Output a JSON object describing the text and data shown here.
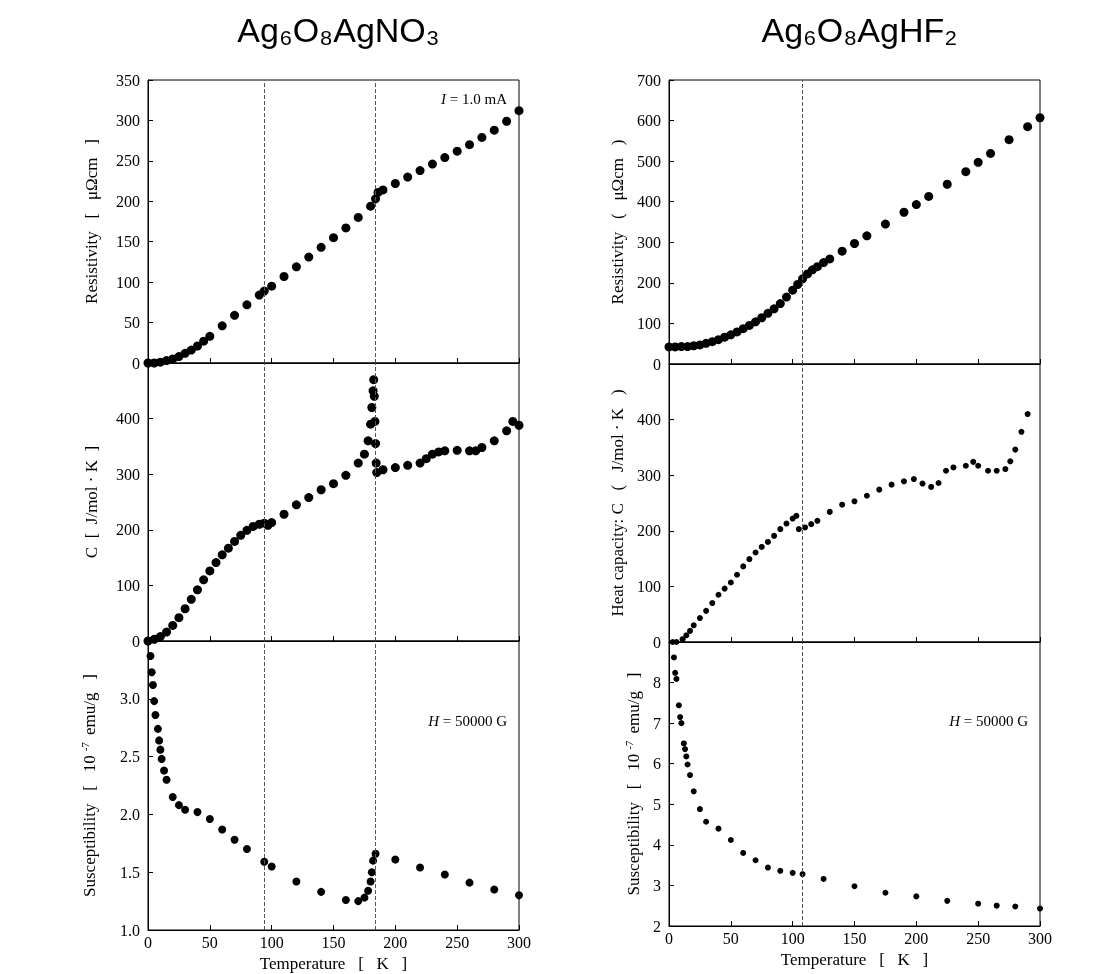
{
  "chart_data": [
    {
      "type": "scatter",
      "title": "Ag₆O₈AgNO₃",
      "ylabel": "Resistivity   [   μΩcm   ]",
      "annotations": [
        "I = 1.0 mA"
      ],
      "xlim": [
        0,
        300
      ],
      "xticks": [
        0,
        50,
        100,
        150,
        200,
        250,
        300
      ],
      "ylim": [
        0,
        350
      ],
      "yticks": [
        0,
        50,
        100,
        150,
        200,
        250,
        300,
        350
      ],
      "tick_labels": "y",
      "marker": "circle",
      "color": "#000000",
      "ref_lines": [
        {
          "axis": "x",
          "value": 94,
          "line_style": "dashed",
          "color": "#555555"
        },
        {
          "axis": "x",
          "value": 184,
          "line_style": "dashed",
          "color": "#555555"
        }
      ],
      "x": [
        0,
        5,
        10,
        15,
        20,
        25,
        30,
        35,
        40,
        45,
        50,
        60,
        70,
        80,
        90,
        94,
        100,
        110,
        120,
        130,
        140,
        150,
        160,
        170,
        180,
        184,
        186,
        190,
        200,
        210,
        220,
        230,
        240,
        250,
        260,
        270,
        280,
        290,
        300
      ],
      "values": [
        0,
        0,
        1,
        3,
        5,
        8,
        12,
        16,
        21,
        27,
        33,
        46,
        59,
        72,
        84,
        89,
        95,
        107,
        119,
        131,
        143,
        155,
        167,
        180,
        194,
        203,
        211,
        214,
        222,
        230,
        238,
        246,
        254,
        262,
        270,
        279,
        288,
        299,
        312
      ]
    },
    {
      "type": "scatter",
      "ylabel": "C  [  J/mol · K  ]",
      "xlim": [
        0,
        300
      ],
      "xticks": [
        0,
        50,
        100,
        150,
        200,
        250,
        300
      ],
      "ylim": [
        0,
        500
      ],
      "yticks": [
        0,
        100,
        200,
        300,
        400
      ],
      "tick_labels": "y",
      "marker": "circle",
      "color": "#000000",
      "ref_lines": [
        {
          "axis": "x",
          "value": 94,
          "line_style": "dashed",
          "color": "#555555"
        },
        {
          "axis": "x",
          "value": 184,
          "line_style": "dashed",
          "color": "#555555"
        }
      ],
      "x": [
        0,
        5,
        10,
        15,
        20,
        25,
        30,
        35,
        40,
        45,
        50,
        55,
        60,
        65,
        70,
        75,
        80,
        85,
        90,
        94,
        97,
        100,
        110,
        120,
        130,
        140,
        150,
        160,
        170,
        175,
        178,
        180,
        181,
        182,
        182.5,
        183,
        183.5,
        184,
        184.5,
        185,
        190,
        200,
        210,
        220,
        225,
        230,
        235,
        240,
        250,
        260,
        265,
        270,
        280,
        290,
        295,
        300
      ],
      "values": [
        0,
        3,
        8,
        16,
        28,
        42,
        58,
        75,
        92,
        110,
        126,
        141,
        155,
        167,
        179,
        190,
        199,
        206,
        210,
        212,
        208,
        213,
        228,
        245,
        258,
        272,
        283,
        298,
        320,
        336,
        360,
        390,
        420,
        450,
        470,
        440,
        395,
        355,
        320,
        303,
        308,
        312,
        316,
        320,
        328,
        336,
        340,
        342,
        343,
        342,
        342,
        348,
        360,
        378,
        395,
        388
      ]
    },
    {
      "type": "scatter",
      "xlabel": "Temperature   [   K   ]",
      "ylabel": "Susceptibility   [   10$^{-7}$ emu/g   ]",
      "annotations": [
        "H = 50000 G"
      ],
      "xlim": [
        0,
        300
      ],
      "xticks": [
        0,
        50,
        100,
        150,
        200,
        250,
        300
      ],
      "ylim": [
        1.0,
        3.5
      ],
      "yticks": [
        {
          "value": 1,
          "label": "1.0"
        },
        {
          "value": 1.5,
          "label": "1.5"
        },
        {
          "value": 2,
          "label": "2.0"
        },
        {
          "value": 2.5,
          "label": "2.5"
        },
        {
          "value": 3,
          "label": "3.0"
        }
      ],
      "marker": "circle",
      "color": "#000000",
      "ref_lines": [
        {
          "axis": "x",
          "value": 94,
          "line_style": "dashed",
          "color": "#555555"
        },
        {
          "axis": "x",
          "value": 184,
          "line_style": "dashed",
          "color": "#555555"
        }
      ],
      "x": [
        2,
        3,
        4,
        5,
        6,
        8,
        9,
        10,
        11,
        13,
        15,
        20,
        25,
        30,
        40,
        50,
        60,
        70,
        80,
        94,
        100,
        120,
        140,
        160,
        170,
        175,
        178,
        180,
        181,
        182,
        184,
        200,
        220,
        240,
        260,
        280,
        300
      ],
      "values": [
        3.37,
        3.23,
        3.12,
        2.98,
        2.86,
        2.74,
        2.64,
        2.56,
        2.48,
        2.38,
        2.3,
        2.15,
        2.08,
        2.04,
        2.02,
        1.96,
        1.87,
        1.78,
        1.7,
        1.59,
        1.55,
        1.42,
        1.33,
        1.26,
        1.25,
        1.28,
        1.34,
        1.42,
        1.5,
        1.6,
        1.66,
        1.61,
        1.54,
        1.48,
        1.41,
        1.35,
        1.3
      ]
    },
    {
      "type": "scatter",
      "title": "Ag₆O₈AgHF₂",
      "ylabel": "Resistivity   (   μΩcm   )",
      "xlim": [
        0,
        300
      ],
      "xticks": [
        0,
        50,
        100,
        150,
        200,
        250,
        300
      ],
      "ylim": [
        0,
        700
      ],
      "yticks": [
        0,
        100,
        200,
        300,
        400,
        500,
        600,
        700
      ],
      "tick_labels": "y",
      "marker": "circle",
      "color": "#000000",
      "ref_lines": [
        {
          "axis": "x",
          "value": 108,
          "line_style": "dashed",
          "color": "#555555"
        }
      ],
      "x": [
        0,
        5,
        10,
        15,
        20,
        25,
        30,
        35,
        40,
        45,
        50,
        55,
        60,
        65,
        70,
        75,
        80,
        85,
        90,
        95,
        100,
        104,
        108,
        112,
        116,
        120,
        125,
        130,
        140,
        150,
        160,
        175,
        190,
        200,
        210,
        225,
        240,
        250,
        260,
        275,
        290,
        300
      ],
      "values": [
        42,
        42,
        43,
        43,
        45,
        47,
        51,
        55,
        60,
        66,
        72,
        79,
        87,
        95,
        104,
        114,
        125,
        136,
        149,
        165,
        182,
        196,
        210,
        222,
        232,
        240,
        250,
        259,
        278,
        297,
        316,
        345,
        374,
        393,
        413,
        443,
        474,
        497,
        519,
        553,
        585,
        607
      ]
    },
    {
      "type": "scatter",
      "ylabel": "Heat capacity: C   (   J/mol · K   )",
      "xlim": [
        0,
        300
      ],
      "xticks": [
        0,
        50,
        100,
        150,
        200,
        250,
        300
      ],
      "ylim": [
        0,
        500
      ],
      "yticks": [
        0,
        100,
        200,
        300,
        400
      ],
      "tick_labels": "y",
      "marker": "circle",
      "color": "#000000",
      "ref_lines": [
        {
          "axis": "x",
          "value": 108,
          "line_style": "dashed",
          "color": "#555555"
        }
      ],
      "x": [
        3,
        6,
        11,
        14,
        17,
        20,
        25,
        30,
        35,
        40,
        45,
        50,
        55,
        60,
        65,
        70,
        75,
        80,
        85,
        90,
        95,
        100,
        103,
        105,
        110,
        115,
        120,
        130,
        140,
        150,
        160,
        170,
        180,
        190,
        198,
        205,
        212,
        218,
        224,
        230,
        240,
        246,
        250,
        258,
        265,
        272,
        276,
        280,
        285,
        290
      ],
      "values": [
        0,
        0,
        5,
        12,
        20,
        30,
        43,
        56,
        70,
        85,
        96,
        107,
        121,
        136,
        149,
        161,
        171,
        180,
        191,
        203,
        213,
        222,
        227,
        203,
        206,
        212,
        218,
        234,
        247,
        253,
        263,
        274,
        283,
        289,
        293,
        285,
        279,
        286,
        308,
        314,
        317,
        324,
        317,
        308,
        308,
        311,
        325,
        346,
        378,
        410
      ]
    },
    {
      "type": "scatter",
      "xlabel": "Temperature   [   K   ]",
      "ylabel": "Susceptibility   [   10$^{-7}$ emu/g   ]",
      "annotations": [
        "H = 50000 G"
      ],
      "xlim": [
        0,
        300
      ],
      "xticks": [
        0,
        50,
        100,
        150,
        200,
        250,
        300
      ],
      "ylim": [
        2,
        9
      ],
      "yticks": [
        2,
        3,
        4,
        5,
        6,
        7,
        8
      ],
      "marker": "circle",
      "color": "#000000",
      "ref_lines": [
        {
          "axis": "x",
          "value": 108,
          "line_style": "dashed",
          "color": "#555555"
        }
      ],
      "x": [
        4,
        5,
        6,
        8,
        9,
        10,
        12,
        13,
        14,
        15,
        17,
        20,
        25,
        30,
        40,
        50,
        60,
        70,
        80,
        90,
        100,
        108,
        125,
        150,
        175,
        200,
        225,
        250,
        265,
        280,
        300
      ],
      "values": [
        8.62,
        8.24,
        8.09,
        7.44,
        7.15,
        7.0,
        6.5,
        6.36,
        6.18,
        5.98,
        5.72,
        5.32,
        4.88,
        4.57,
        4.4,
        4.12,
        3.8,
        3.62,
        3.44,
        3.36,
        3.31,
        3.28,
        3.16,
        2.98,
        2.82,
        2.73,
        2.62,
        2.55,
        2.5,
        2.48,
        2.43
      ]
    }
  ]
}
